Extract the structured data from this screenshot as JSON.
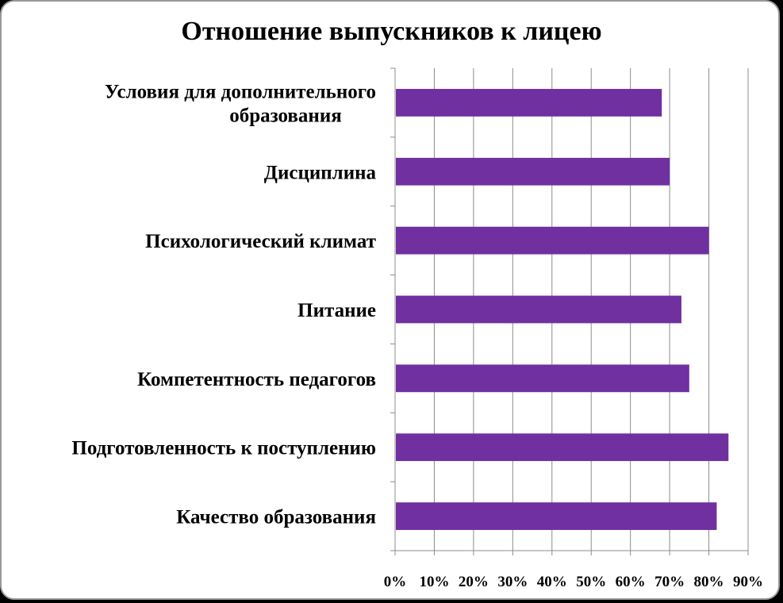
{
  "chart_data": {
    "type": "bar",
    "orientation": "horizontal",
    "title": "Отношение выпускников к лицею",
    "categories": [
      [
        "Условия для дополнительного",
        "образования"
      ],
      [
        "Дисциплина"
      ],
      [
        "Психологический климат"
      ],
      [
        "Питание"
      ],
      [
        "Компетентность педагогов"
      ],
      [
        "Подготовленность к поступлению"
      ],
      [
        "Качество образования"
      ]
    ],
    "values": [
      0.68,
      0.7,
      0.8,
      0.73,
      0.75,
      0.85,
      0.82
    ],
    "xlim": [
      0,
      0.9
    ],
    "x_ticks": [
      "0%",
      "10%",
      "20%",
      "30%",
      "40%",
      "50%",
      "60%",
      "70%",
      "80%",
      "90%"
    ],
    "grid": "vertical",
    "legend": "none",
    "bar_color": "#7030a0"
  }
}
